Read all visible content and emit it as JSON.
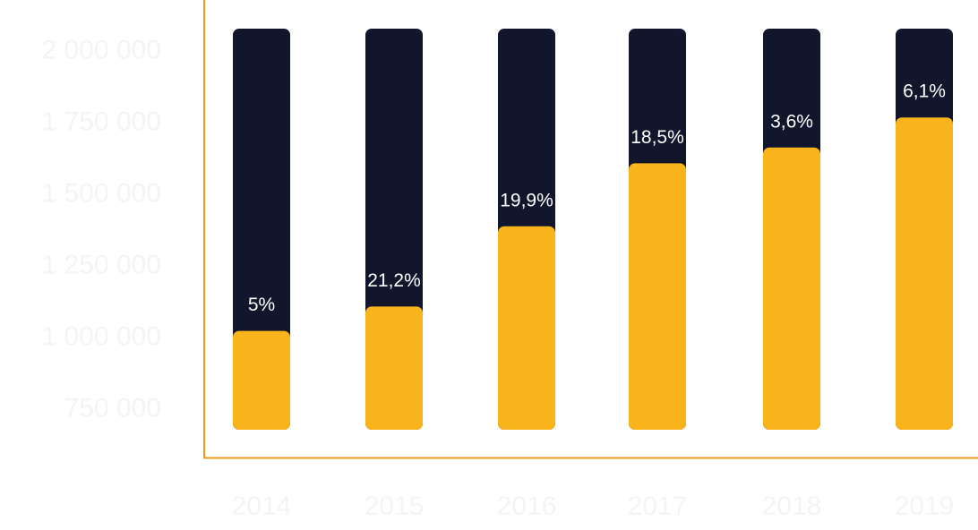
{
  "colors": {
    "background": "#FFFFFF",
    "bar_track": "#11162D",
    "bar_fill": "#F9B31B",
    "axis_line": "#E99A17",
    "tick_label": "#F4F4F4",
    "value_label": "#FFFFFF"
  },
  "chart_data": {
    "type": "bar",
    "title": "",
    "xlabel": "",
    "ylabel": "",
    "categories": [
      "2014",
      "2015",
      "2016",
      "2017",
      "2018",
      "2019"
    ],
    "values": [
      1025000,
      1110000,
      1390000,
      1610000,
      1665000,
      1770000
    ],
    "growth_labels": [
      "5%",
      "21,2%",
      "19,9%",
      "18,5%",
      "3,6%",
      "6,1%"
    ],
    "y_ticks": [
      2000000,
      1750000,
      1500000,
      1250000,
      1000000,
      750000
    ],
    "y_tick_labels": [
      "2 000 000",
      "1 750 000",
      "1 500 000",
      "1 250 000",
      "1 000 000",
      "750 000"
    ],
    "ylim": [
      680000,
      2080000
    ],
    "grid": false,
    "legend": "none"
  }
}
